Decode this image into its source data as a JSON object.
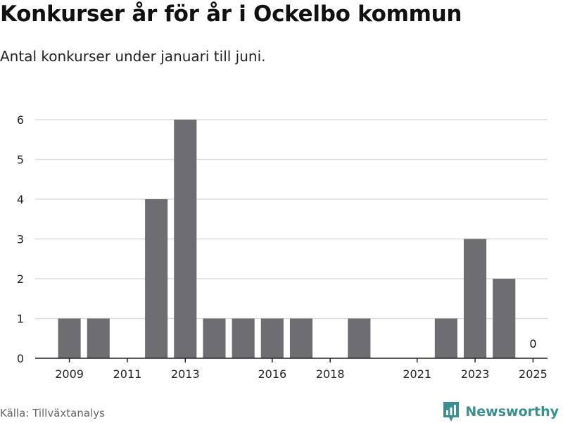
{
  "title": "Konkurser år för år i Ockelbo kommun",
  "subtitle": "Antal konkurser under januari till juni.",
  "source": "Källa: Tillväxtanalys",
  "brand": "Newsworthy",
  "colors": {
    "bar": "#6e6d72",
    "grid": "#dddddd",
    "brand": "#3a8f8f"
  },
  "chart_data": {
    "type": "bar",
    "categories": [
      "2009",
      "2010",
      "2011",
      "2012",
      "2013",
      "2014",
      "2015",
      "2016",
      "2017",
      "2018",
      "2019",
      "2020",
      "2021",
      "2022",
      "2023",
      "2024",
      "2025"
    ],
    "values": [
      1,
      1,
      0,
      4,
      6,
      1,
      1,
      1,
      1,
      0,
      1,
      0,
      0,
      1,
      3,
      2,
      0
    ],
    "x_tick_labels": [
      "2009",
      "2011",
      "2013",
      "2016",
      "2018",
      "2021",
      "2023",
      "2025"
    ],
    "y_ticks": [
      0,
      1,
      2,
      3,
      4,
      5,
      6
    ],
    "ylim": [
      0,
      6
    ],
    "data_labels": [
      {
        "category": "2025",
        "text": "0"
      }
    ],
    "grid": true
  }
}
